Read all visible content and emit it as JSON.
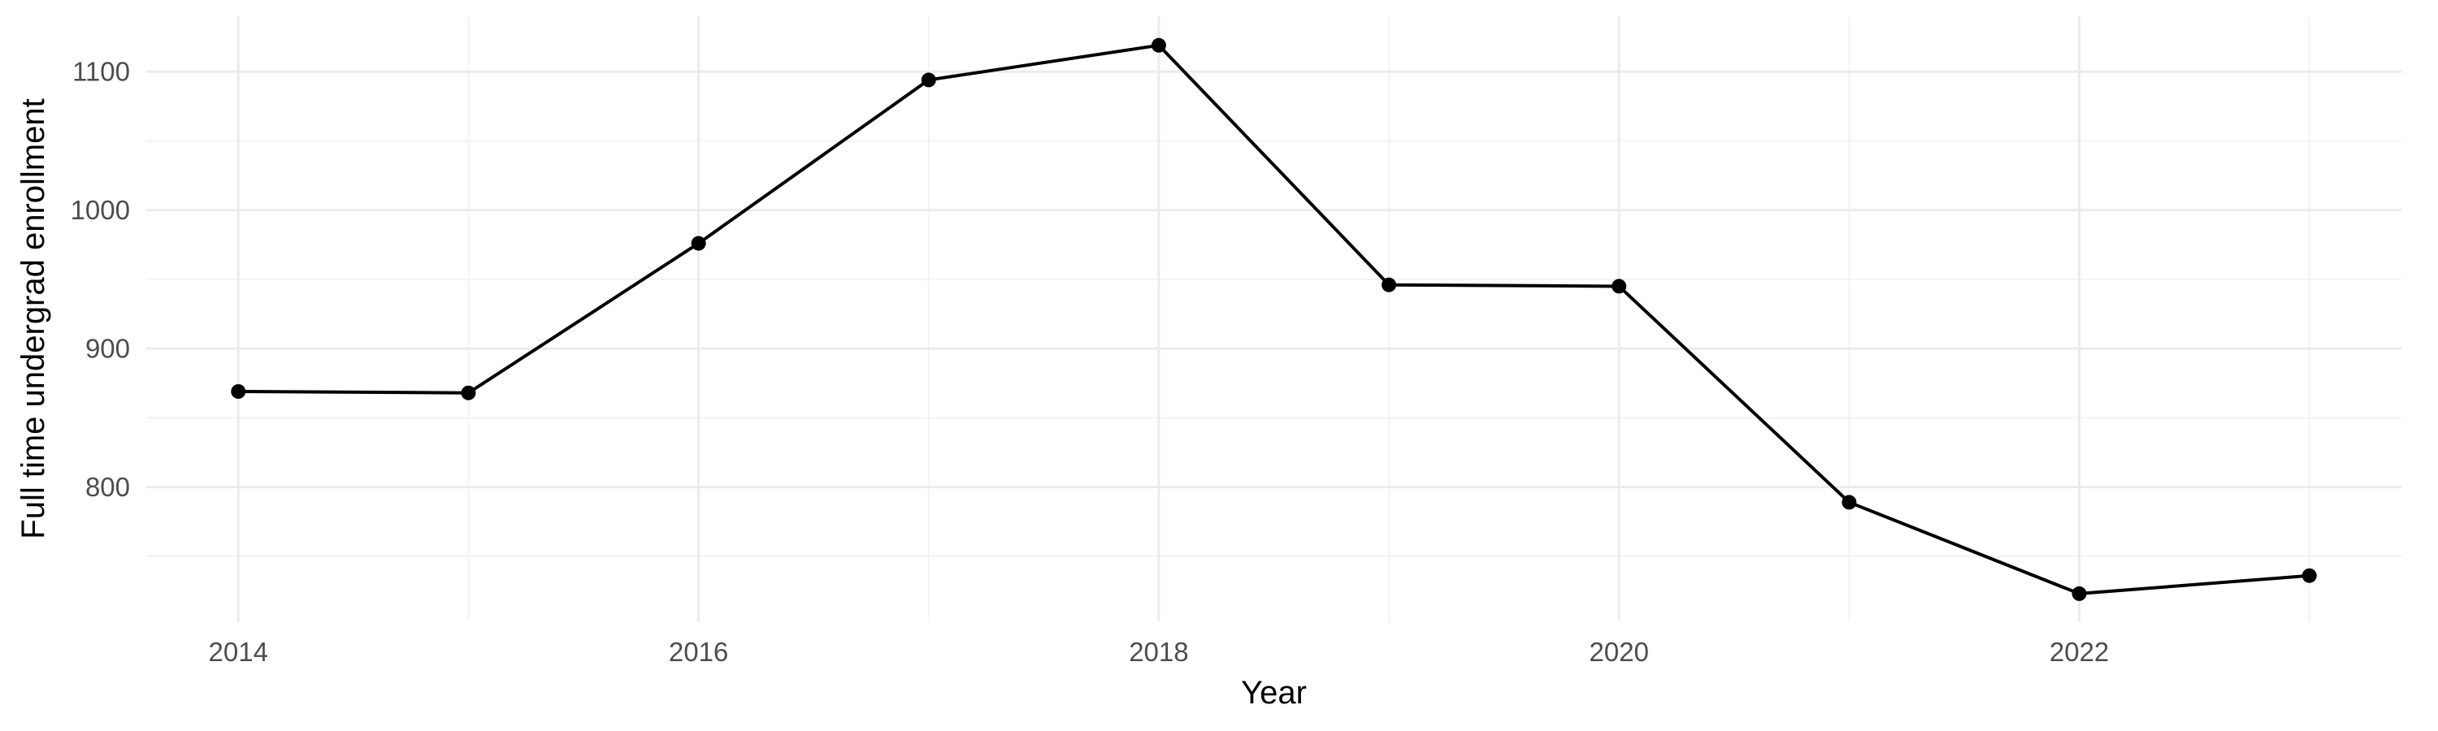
{
  "chart_data": {
    "type": "line",
    "title": "",
    "xlabel": "Year",
    "ylabel": "Full time undergrad enrollment",
    "x": [
      2014,
      2015,
      2016,
      2017,
      2018,
      2019,
      2020,
      2021,
      2022,
      2023
    ],
    "series": [
      {
        "values": [
          869,
          868,
          976,
          1094,
          1119,
          946,
          945,
          789,
          723,
          736
        ]
      }
    ],
    "xlim": [
      2013.6,
      2023.4
    ],
    "ylim": [
      703,
      1140
    ],
    "x_ticks": [
      2014,
      2016,
      2018,
      2020,
      2022
    ],
    "x_tick_labels": [
      "2014",
      "2016",
      "2018",
      "2020",
      "2022"
    ],
    "x_minor_ticks": [
      2015,
      2017,
      2019,
      2021,
      2023
    ],
    "y_ticks": [
      800,
      900,
      1000,
      1100
    ],
    "y_tick_labels": [
      "800",
      "900",
      "1000",
      "1100"
    ],
    "y_minor_ticks": [
      750,
      850,
      950,
      1050
    ],
    "grid": true,
    "legend": "none",
    "colors": {
      "line": "#000000",
      "point": "#000000",
      "grid_major": "#ebebeb",
      "grid_minor": "#f3f3f3",
      "tick_text": "#4d4d4d",
      "background": "#ffffff"
    }
  }
}
